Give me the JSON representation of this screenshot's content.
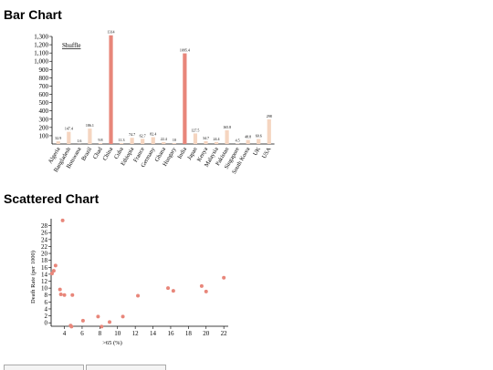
{
  "headings": {
    "bar": "Bar Chart",
    "scatter": "Scattered Chart"
  },
  "shuffle_label": "Shuffle",
  "colors": {
    "bar_highlight": "#e8867a",
    "bar_normal": "#f5d5c0",
    "scatter_point": "#e8867a",
    "axis": "#000000"
  },
  "chart_data": [
    {
      "type": "bar",
      "title": "",
      "xlabel": "",
      "ylabel": "",
      "ylim": [
        0,
        1300
      ],
      "yticks": [
        100,
        200,
        300,
        400,
        500,
        600,
        700,
        800,
        900,
        1000,
        1100,
        1200,
        1300
      ],
      "ytick_labels": [
        "100",
        "200",
        "300",
        "400",
        "500",
        "600",
        "700",
        "800",
        "900",
        "1,000",
        "1,100",
        "1,200",
        "1,300"
      ],
      "categories": [
        "Algeria",
        "Bangladesh",
        "Botswana",
        "Brazil",
        "Chad",
        "China",
        "Cuba",
        "Ethiopia",
        "France",
        "Germany",
        "Ghana",
        "Hungary",
        "India",
        "Japan",
        "Kenya",
        "Malaysia",
        "Pakistan",
        "Singapore",
        "South Korea",
        "UK",
        "USA"
      ],
      "values": [
        32.9,
        147.4,
        1.6,
        186.1,
        9.8,
        1314,
        11.3,
        74.7,
        62.7,
        82.4,
        22.4,
        10,
        1095.4,
        127.5,
        34.7,
        24.4,
        165.8,
        4.5,
        48.8,
        60.6,
        298
      ],
      "value_labels": [
        "32.9",
        "147.4",
        "1.6",
        "186.1",
        "9.8",
        "1314",
        "11.3",
        "74.7",
        "62.7",
        "82.4",
        "22.4",
        "10",
        "1095.4",
        "127.5",
        "34.7",
        "24.4",
        "165.8",
        "4.5",
        "48.8",
        "60.6",
        "298"
      ],
      "highlighted": [
        "China",
        "India"
      ]
    },
    {
      "type": "scatter",
      "title": "",
      "xlabel": ">65 (%)",
      "ylabel": "Death Rate (per 1000)",
      "xlim": [
        2.5,
        22.5
      ],
      "ylim": [
        -1,
        30
      ],
      "xticks": [
        4,
        6,
        8,
        10,
        12,
        14,
        16,
        18,
        20,
        22
      ],
      "yticks": [
        0,
        2,
        4,
        6,
        8,
        10,
        12,
        14,
        16,
        18,
        20,
        22,
        24,
        26,
        28
      ],
      "points": [
        {
          "x": 2.6,
          "y": 14.2
        },
        {
          "x": 2.8,
          "y": 15.0
        },
        {
          "x": 3.0,
          "y": 16.5
        },
        {
          "x": 3.5,
          "y": 9.6
        },
        {
          "x": 3.6,
          "y": 8.2
        },
        {
          "x": 3.8,
          "y": 29.5
        },
        {
          "x": 4.0,
          "y": 8.0
        },
        {
          "x": 4.7,
          "y": -0.8
        },
        {
          "x": 4.8,
          "y": -1.1
        },
        {
          "x": 4.9,
          "y": 8.0
        },
        {
          "x": 6.1,
          "y": 0.6
        },
        {
          "x": 7.8,
          "y": 1.8
        },
        {
          "x": 8.2,
          "y": -1.1
        },
        {
          "x": 9.1,
          "y": 0.2
        },
        {
          "x": 10.6,
          "y": 1.8
        },
        {
          "x": 12.3,
          "y": 7.8
        },
        {
          "x": 15.7,
          "y": 10.0
        },
        {
          "x": 16.3,
          "y": 9.2
        },
        {
          "x": 19.5,
          "y": 10.6
        },
        {
          "x": 20.0,
          "y": 9.0
        },
        {
          "x": 22.0,
          "y": 13.0
        }
      ]
    }
  ]
}
